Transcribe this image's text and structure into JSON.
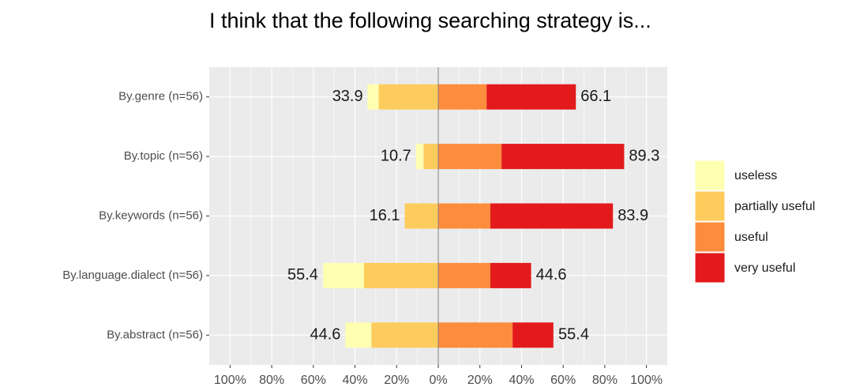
{
  "chart_data": {
    "type": "diverging_bar",
    "title": "I think that the following searching strategy is...",
    "categories": [
      "By.genre (n=56)",
      "By.topic (n=56)",
      "By.keywords (n=56)",
      "By.language.dialect (n=56)",
      "By.abstract (n=56)"
    ],
    "series": [
      {
        "name": "useless",
        "color": "#ffffb2",
        "side": "left",
        "values": [
          5.4,
          3.6,
          0,
          19.6,
          12.5
        ]
      },
      {
        "name": "partially useful",
        "color": "#fecc5c",
        "side": "left",
        "values": [
          28.6,
          7.1,
          16.1,
          35.7,
          32.1
        ]
      },
      {
        "name": "useful",
        "color": "#fd8d3c",
        "side": "right",
        "values": [
          23.2,
          30.4,
          25.0,
          25.0,
          35.7
        ]
      },
      {
        "name": "very useful",
        "color": "#e31a1c",
        "side": "right",
        "values": [
          42.9,
          58.9,
          58.9,
          19.6,
          19.6
        ]
      }
    ],
    "left_totals": [
      33.9,
      10.7,
      16.1,
      55.4,
      44.6
    ],
    "right_totals": [
      66.1,
      89.3,
      83.9,
      44.6,
      55.4
    ],
    "xlim": [
      -110,
      110
    ],
    "xticks": [
      {
        "value": -100,
        "label": "100%"
      },
      {
        "value": -80,
        "label": "80%"
      },
      {
        "value": -60,
        "label": "60%"
      },
      {
        "value": -40,
        "label": "40%"
      },
      {
        "value": -20,
        "label": "20%"
      },
      {
        "value": 0,
        "label": "0%"
      },
      {
        "value": 20,
        "label": "20%"
      },
      {
        "value": 40,
        "label": "40%"
      },
      {
        "value": 60,
        "label": "60%"
      },
      {
        "value": 80,
        "label": "80%"
      },
      {
        "value": 100,
        "label": "100%"
      }
    ],
    "grid": true,
    "legend_position": "right"
  }
}
